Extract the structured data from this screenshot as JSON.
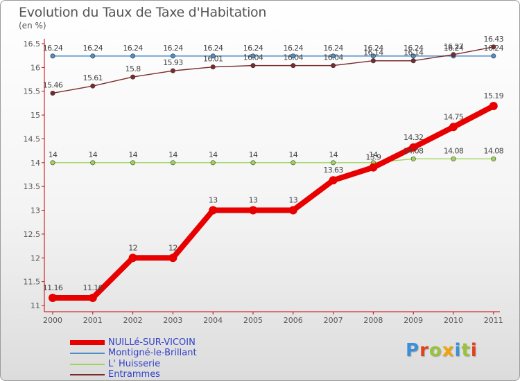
{
  "title": "Evolution du Taux de Taxe d'Habitation",
  "unit": "(en %)",
  "logo": {
    "letters": [
      "P",
      "r",
      "o",
      "x",
      "i",
      "t",
      "i"
    ],
    "colors": [
      "#3a8fd8",
      "#e0421b",
      "#9ac23c",
      "#f0a30a",
      "#3a8fd8",
      "#9ac23c",
      "#e0421b"
    ]
  },
  "chart_data": {
    "type": "line",
    "title": "Evolution du Taux de Taxe d'Habitation",
    "ylabel": "(en %)",
    "x": [
      2000,
      2001,
      2002,
      2003,
      2004,
      2005,
      2006,
      2007,
      2008,
      2009,
      2010,
      2011
    ],
    "ylim": [
      11,
      16.5
    ],
    "yticks": [
      11,
      11.5,
      12,
      12.5,
      13,
      13.5,
      14,
      14.5,
      15,
      15.5,
      16,
      16.5
    ],
    "ytick_labels": [
      "11",
      "11.5",
      "12",
      "12.5",
      "13",
      "13.5",
      "14",
      "14.5",
      "15",
      "15.5",
      "16",
      "16.5"
    ],
    "grid": false,
    "legend_position": "bottom-left",
    "series": [
      {
        "name": "NUILLé-SUR-VICOIN",
        "color": "#e80000",
        "values": [
          11.16,
          11.16,
          12,
          12,
          13,
          13,
          13,
          13.63,
          13.9,
          14.32,
          14.75,
          15.19
        ],
        "labels": [
          "11.16",
          "11.16",
          "12",
          "12",
          "13",
          "13",
          "13",
          "13.63",
          "13.9",
          "14.32",
          "14.75",
          "15.19"
        ]
      },
      {
        "name": "Montigné-le-Brillant",
        "color": "#4f8fc8",
        "values": [
          16.24,
          16.24,
          16.24,
          16.24,
          16.24,
          16.24,
          16.24,
          16.24,
          16.24,
          16.24,
          16.24,
          16.24
        ],
        "labels": [
          "16.24",
          "16.24",
          "16.24",
          "16.24",
          "16.24",
          "16.24",
          "16.24",
          "16.24",
          "16.24",
          "16.24",
          "16.24",
          "16.24"
        ]
      },
      {
        "name": "L' Huisserie",
        "color": "#9ed45a",
        "values": [
          14,
          14,
          14,
          14,
          14,
          14,
          14,
          14,
          14,
          14.08,
          14.08,
          14.08
        ],
        "labels": [
          "14",
          "14",
          "14",
          "14",
          "14",
          "14",
          "14",
          "14",
          "14",
          "14.08",
          "14.08",
          "14.08"
        ]
      },
      {
        "name": "Entrammes",
        "color": "#7a2a2a",
        "values": [
          15.46,
          15.61,
          15.8,
          15.93,
          16.01,
          16.04,
          16.04,
          16.04,
          16.14,
          16.14,
          16.27,
          16.43
        ],
        "labels": [
          "15.46",
          "15.61",
          "15.8",
          "15.93",
          "16.01",
          "16.04",
          "16.04",
          "16.04",
          "16.14",
          "16.14",
          "16.27",
          "16.43"
        ]
      }
    ]
  }
}
